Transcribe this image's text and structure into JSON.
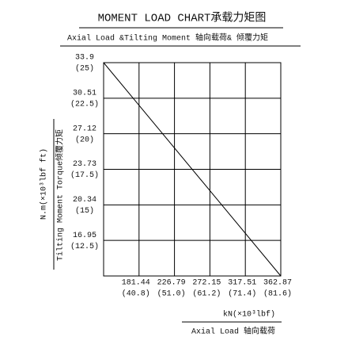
{
  "chart_data": {
    "type": "line",
    "title": "MOMENT LOAD CHART承载力矩图",
    "subtitle": "Axial Load &Tilting Moment 轴向载荷& 倾覆力矩",
    "y_label": "N.m(×10³lbf ft)",
    "y_label_2": "Tilting Moment Torque倾覆力矩",
    "x_label": "kN(×10³lbf)",
    "x_label_2": "Axial Load 轴向载荷",
    "x": [
      136.08,
      362.87
    ],
    "values": [
      33.9,
      13.56
    ],
    "color": "#000000",
    "xlim": [
      136.08,
      362.87
    ],
    "ylim": [
      13.56,
      33.9
    ],
    "xticks": [
      181.44,
      226.79,
      272.15,
      317.51,
      362.87
    ],
    "xtick_sublabels": [
      "(40.8)",
      "(51.0)",
      "(61.2)",
      "(71.4)",
      "(81.6)"
    ],
    "yticks": [
      33.9,
      30.51,
      27.12,
      23.73,
      20.34,
      16.95
    ],
    "ytick_sublabels": [
      "(25)",
      "(22.5)",
      "(20)",
      "(17.5)",
      "(15)",
      "(12.5)"
    ],
    "grid": true
  }
}
